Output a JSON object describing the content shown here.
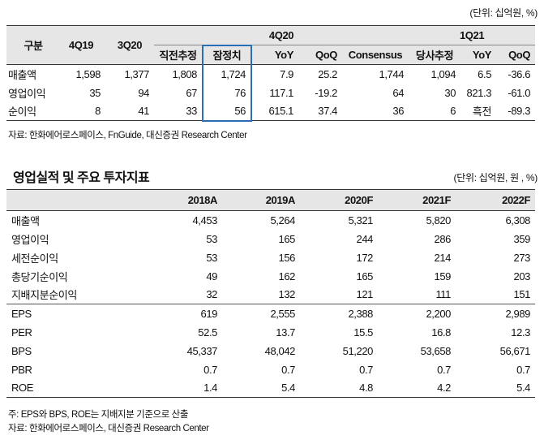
{
  "table1": {
    "unit": "(단위: 십억원, %)",
    "header_top": {
      "label": "구분",
      "q4_19": "4Q19",
      "q3_20": "3Q20",
      "group_4q20": "4Q20",
      "group_1q21": "1Q21"
    },
    "header_sub": [
      "직전추정",
      "잠정치",
      "YoY",
      "QoQ",
      "Consensus",
      "당사추정",
      "YoY",
      "QoQ"
    ],
    "rows": [
      {
        "label": "매출액",
        "cells": [
          "1,598",
          "1,377",
          "1,808",
          "1,724",
          "7.9",
          "25.2",
          "1,744",
          "1,094",
          "6.5",
          "-36.6"
        ]
      },
      {
        "label": "영업이익",
        "cells": [
          "35",
          "94",
          "67",
          "76",
          "117.1",
          "-19.2",
          "64",
          "30",
          "821.3",
          "-61.0"
        ]
      },
      {
        "label": "순이익",
        "cells": [
          "8",
          "41",
          "33",
          "56",
          "615.1",
          "37.4",
          "36",
          "6",
          "흑전",
          "-89.3"
        ]
      }
    ],
    "source": "자료: 한화에어로스페이스, FnGuide, 대신증권 Research Center"
  },
  "section2": {
    "title": "영업실적 및 주요 투자지표",
    "unit": "(단위: 십억원, 원 , %)"
  },
  "table2": {
    "columns": [
      "2018A",
      "2019A",
      "2020F",
      "2021F",
      "2022F"
    ],
    "rows": [
      {
        "label": "매출액",
        "cells": [
          "4,453",
          "5,264",
          "5,321",
          "5,820",
          "6,308"
        ]
      },
      {
        "label": "영업이익",
        "cells": [
          "53",
          "165",
          "244",
          "286",
          "359"
        ]
      },
      {
        "label": "세전순이익",
        "cells": [
          "53",
          "156",
          "172",
          "214",
          "273"
        ]
      },
      {
        "label": "총당기순이익",
        "cells": [
          "49",
          "162",
          "165",
          "159",
          "203"
        ]
      },
      {
        "label": "지배지분순이익",
        "cells": [
          "32",
          "132",
          "121",
          "111",
          "151"
        ]
      },
      {
        "label": "EPS",
        "cells": [
          "619",
          "2,555",
          "2,388",
          "2,200",
          "2,989"
        ]
      },
      {
        "label": "PER",
        "cells": [
          "52.5",
          "13.7",
          "15.5",
          "16.8",
          "12.3"
        ]
      },
      {
        "label": "BPS",
        "cells": [
          "45,337",
          "48,042",
          "51,220",
          "53,658",
          "56,671"
        ]
      },
      {
        "label": "PBR",
        "cells": [
          "0.7",
          "0.7",
          "0.7",
          "0.7",
          "0.7"
        ]
      },
      {
        "label": "ROE",
        "cells": [
          "1.4",
          "5.4",
          "4.8",
          "4.2",
          "5.4"
        ]
      }
    ],
    "note": "주: EPS와 BPS, ROE는 지배지분 기준으로 산출",
    "source": "자료: 한화에어로스페이스, 대신증권 Research Center"
  }
}
